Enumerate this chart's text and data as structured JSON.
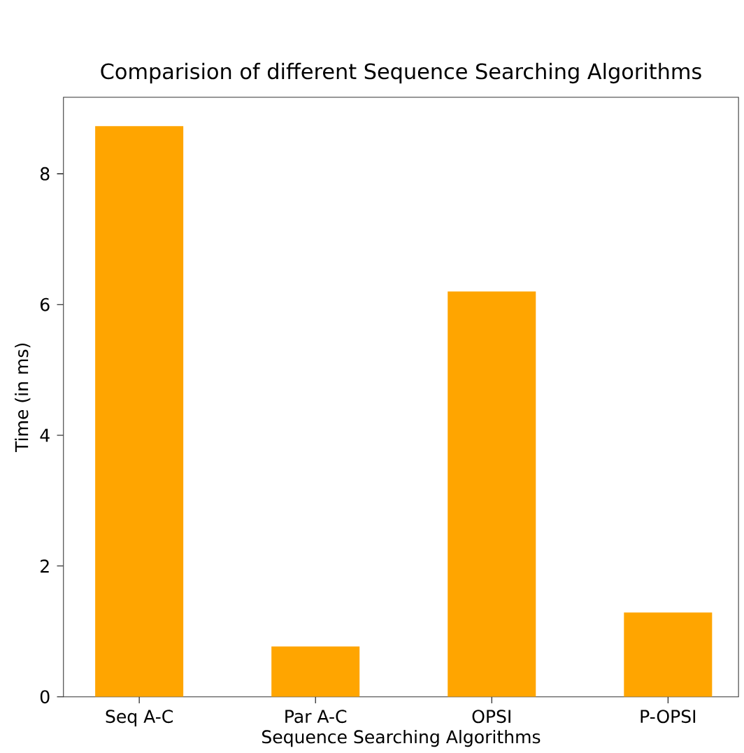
{
  "chart_data": {
    "type": "bar",
    "title": "Comparision of different Sequence Searching Algorithms",
    "xlabel": "Sequence Searching Algorithms",
    "ylabel": "Time (in ms)",
    "categories": [
      "Seq A-C",
      "Par A-C",
      "OPSI",
      "P-OPSI"
    ],
    "values": [
      8.73,
      0.77,
      6.2,
      1.29
    ],
    "color": "#ffa500",
    "ylim": [
      0,
      9.17
    ],
    "yticks": [
      0,
      2,
      4,
      6,
      8
    ],
    "grid": false
  }
}
